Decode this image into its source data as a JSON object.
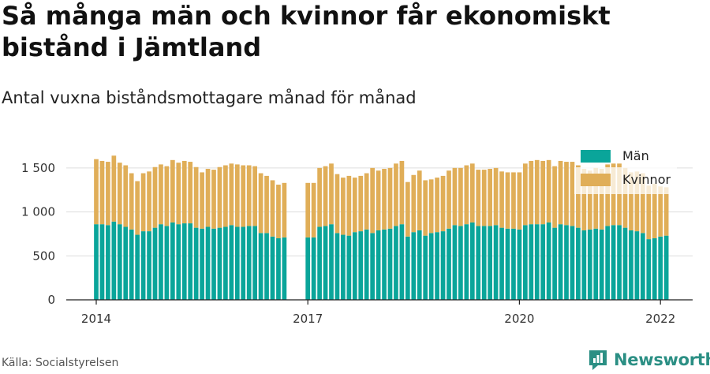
{
  "title": "Så många män och kvinnor får ekonomiskt bistånd i Jämtland",
  "subtitle": "Antal vuxna biståndsmottagare månad för månad",
  "source": "Källa: Socialstyrelsen",
  "brand": {
    "name": "Newsworthy",
    "icon": "newsworthy-logo-icon"
  },
  "colors": {
    "men": "#0aa59a",
    "women": "#e0ae58",
    "grid": "#dddddd",
    "axis": "#222222"
  },
  "chart_data": {
    "type": "bar",
    "stacked": true,
    "ylim": [
      0,
      1750
    ],
    "yticks": [
      {
        "value": 0,
        "label": "0"
      },
      {
        "value": 500,
        "label": "500"
      },
      {
        "value": 1000,
        "label": "1 000"
      },
      {
        "value": 1500,
        "label": "1 500"
      }
    ],
    "xticks": [
      {
        "index": 0,
        "label": "2014"
      },
      {
        "index": 36,
        "label": "2017"
      },
      {
        "index": 72,
        "label": "2020"
      },
      {
        "index": 96,
        "label": "2022"
      }
    ],
    "legend_position": "top-right",
    "series": [
      {
        "name": "Män",
        "values": [
          860,
          860,
          850,
          890,
          860,
          830,
          800,
          740,
          780,
          780,
          820,
          860,
          840,
          880,
          860,
          870,
          870,
          820,
          810,
          830,
          810,
          820,
          830,
          850,
          830,
          830,
          840,
          840,
          760,
          760,
          720,
          700,
          710,
          null,
          null,
          null,
          710,
          710,
          830,
          840,
          860,
          760,
          740,
          730,
          770,
          780,
          800,
          760,
          790,
          800,
          810,
          840,
          860,
          720,
          770,
          790,
          730,
          760,
          770,
          780,
          810,
          850,
          840,
          860,
          880,
          840,
          840,
          840,
          850,
          820,
          810,
          810,
          800,
          850,
          860,
          860,
          860,
          880,
          820,
          860,
          850,
          840,
          820,
          790,
          800,
          810,
          800,
          840,
          850,
          850,
          820,
          790,
          780,
          760,
          690,
          700,
          720,
          730
        ]
      },
      {
        "name": "Kvinnor",
        "values": [
          740,
          720,
          720,
          750,
          700,
          700,
          640,
          610,
          660,
          680,
          690,
          680,
          680,
          710,
          700,
          710,
          700,
          690,
          640,
          660,
          670,
          690,
          700,
          700,
          710,
          700,
          690,
          680,
          680,
          650,
          640,
          610,
          620,
          null,
          null,
          null,
          620,
          620,
          670,
          680,
          690,
          670,
          650,
          680,
          620,
          630,
          640,
          740,
          680,
          690,
          690,
          710,
          720,
          620,
          650,
          680,
          630,
          610,
          620,
          630,
          660,
          650,
          660,
          670,
          670,
          640,
          640,
          650,
          650,
          640,
          640,
          640,
          650,
          700,
          720,
          730,
          720,
          710,
          700,
          720,
          720,
          730,
          710,
          700,
          670,
          690,
          690,
          700,
          700,
          700,
          680,
          660,
          680,
          680,
          610,
          620,
          570,
          550
        ]
      }
    ]
  }
}
